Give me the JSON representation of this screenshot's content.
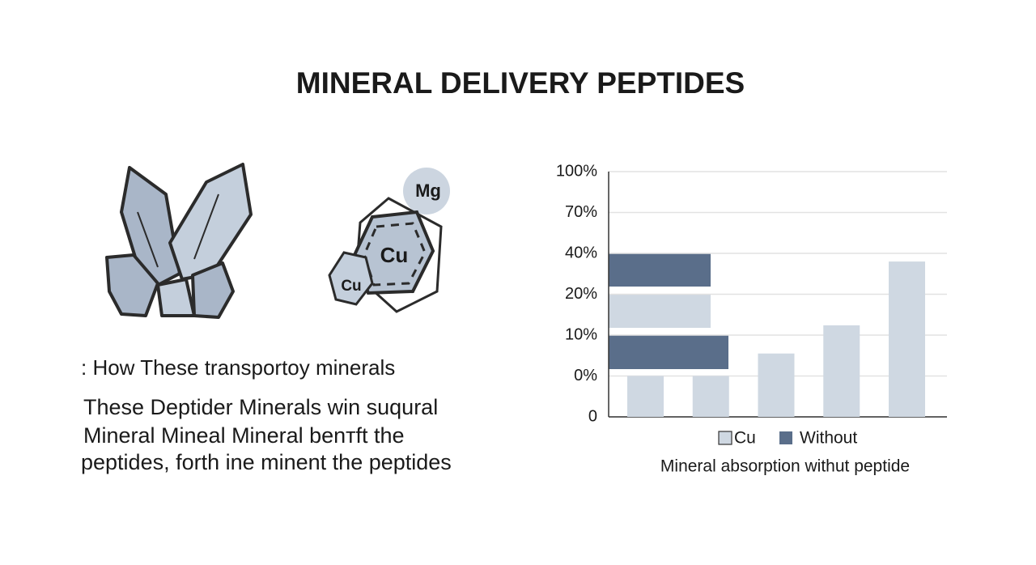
{
  "header": {
    "title": "MINERAL DELIVERY PEPTIDES"
  },
  "illustration": {
    "labels": [
      "Mg",
      "Cu",
      "Cu"
    ]
  },
  "text": {
    "heading": ": How These transportoy minerals",
    "paragraph": [
      "These Deptider Minerals win suqural",
      "Mineral Mineal Mineral benтft the",
      "peptides, forth ine minent the peptides"
    ]
  },
  "chart_data": {
    "type": "bar",
    "categories": [
      null,
      null,
      null,
      null,
      null
    ],
    "series": [
      {
        "name": "Cu",
        "color": "#cfd8e2",
        "values": [
          0,
          0,
          5.5,
          12.4,
          36
        ]
      },
      {
        "name": "Without",
        "color": "#5a6e8a",
        "values": [
          null,
          null,
          null,
          null,
          null
        ]
      }
    ],
    "ylim": [
      0,
      100
    ],
    "yticks": [
      0,
      {
        "value": 0,
        "label": "0%"
      },
      {
        "value": 10,
        "label": "10%"
      },
      {
        "value": 20,
        "label": "20%"
      },
      {
        "value": 40,
        "label": "40%"
      },
      {
        "value": 70,
        "label": "70%"
      },
      {
        "value": 100,
        "label": "100%"
      }
    ],
    "grid": true,
    "caption": "Mineral absorption withut peptide"
  }
}
